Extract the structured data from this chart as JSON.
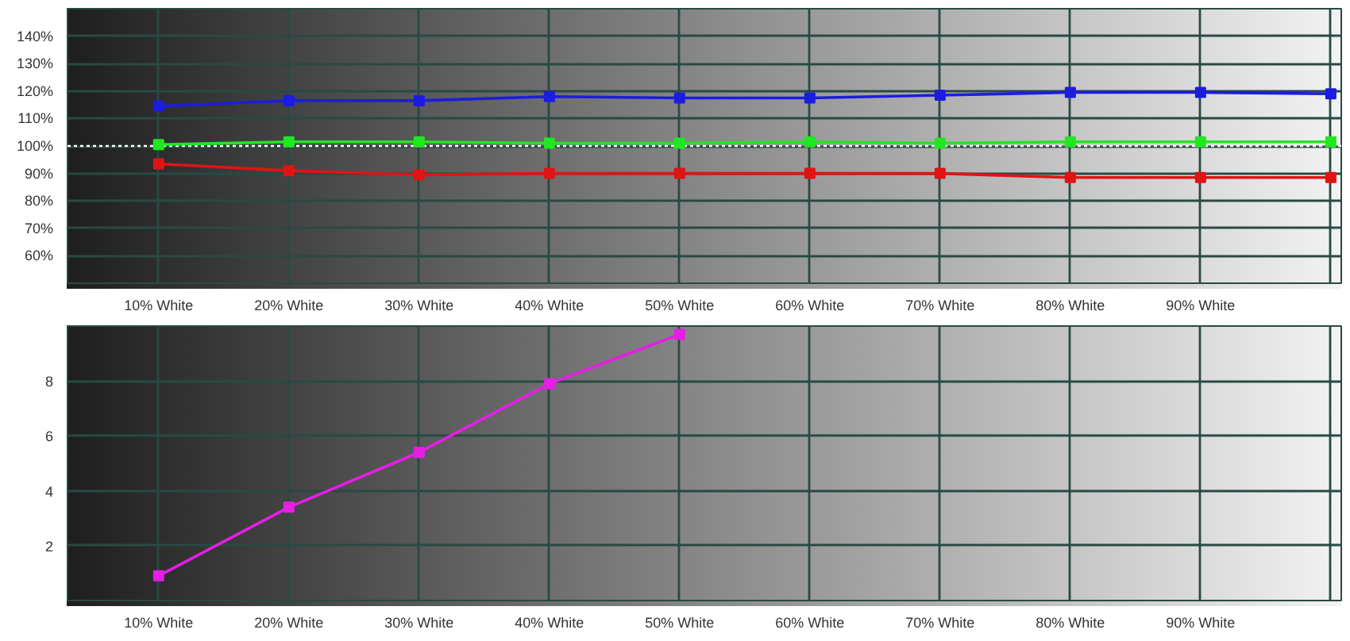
{
  "chart_data": [
    {
      "type": "line",
      "categories": [
        "10% White",
        "20% White",
        "30% White",
        "40% White",
        "50% White",
        "60% White",
        "70% White",
        "80% White",
        "90% White",
        null
      ],
      "series": [
        {
          "color": "#1c1ce0",
          "values": [
            114.5,
            116.5,
            116.5,
            118,
            117.5,
            117.5,
            118.5,
            119.5,
            119.5,
            119
          ]
        },
        {
          "color": "#22e622",
          "values": [
            100.5,
            101.5,
            101.5,
            101,
            101,
            101.5,
            101,
            101.5,
            101.5,
            101.5
          ]
        },
        {
          "color": "#e01414",
          "values": [
            93.5,
            91,
            89.5,
            90,
            90,
            90,
            90,
            88.5,
            88.5,
            88.5
          ]
        }
      ],
      "ylim": [
        50,
        150
      ],
      "yticks": [
        {
          "value": 60,
          "label": "60%"
        },
        {
          "value": 70,
          "label": "70%"
        },
        {
          "value": 80,
          "label": "80%"
        },
        {
          "value": 90,
          "label": "90%"
        },
        {
          "value": 100,
          "label": "100%"
        },
        {
          "value": 110,
          "label": "110%"
        },
        {
          "value": 120,
          "label": "120%"
        },
        {
          "value": 130,
          "label": "130%"
        },
        {
          "value": 140,
          "label": "140%"
        }
      ],
      "grid": true,
      "marker": "square",
      "line_style": "solid",
      "ref_lines": [
        {
          "axis": "y",
          "value": 100,
          "color": "#ffffff",
          "line_style": "dotted"
        }
      ]
    },
    {
      "type": "line",
      "categories": [
        "10% White",
        "20% White",
        "30% White",
        "40% White",
        "50% White",
        "60% White",
        "70% White",
        "80% White",
        "90% White",
        null
      ],
      "series": [
        {
          "color": "#e61ee6",
          "values": [
            0.9,
            3.4,
            5.4,
            7.9,
            9.7,
            null,
            null,
            null,
            null,
            null
          ]
        }
      ],
      "ylim": [
        0,
        10
      ],
      "yticks": [
        2,
        4,
        6,
        8
      ],
      "grid": true,
      "marker": "square",
      "line_style": "solid"
    }
  ]
}
